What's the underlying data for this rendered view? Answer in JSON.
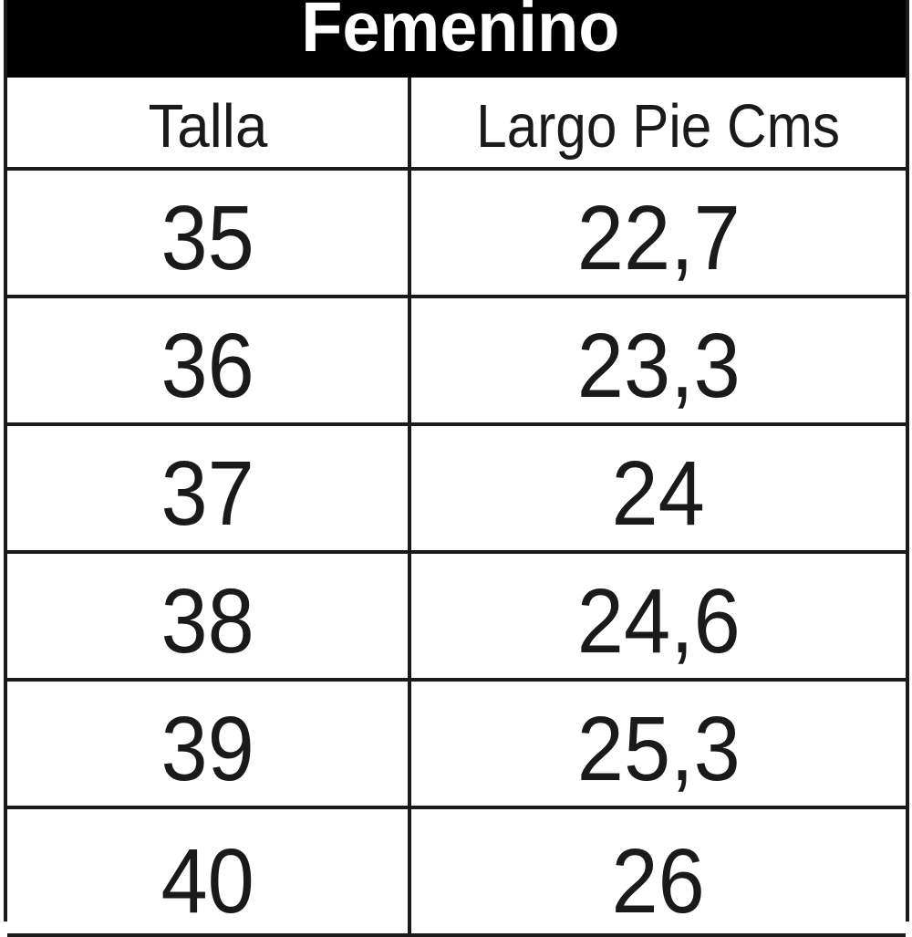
{
  "title": "Femenino",
  "columns": {
    "size": "Talla",
    "length": "Largo Pie Cms"
  },
  "rows": [
    {
      "talla": "35",
      "largo": "22,7"
    },
    {
      "talla": "36",
      "largo": "23,3"
    },
    {
      "talla": "37",
      "largo": "24"
    },
    {
      "talla": "38",
      "largo": "24,6"
    },
    {
      "talla": "39",
      "largo": "25,3"
    },
    {
      "talla": "40",
      "largo": "26"
    }
  ],
  "colors": {
    "header_bg": "#000000",
    "header_text": "#ffffff",
    "border": "#1a1a1a",
    "text": "#1a1a1a"
  }
}
